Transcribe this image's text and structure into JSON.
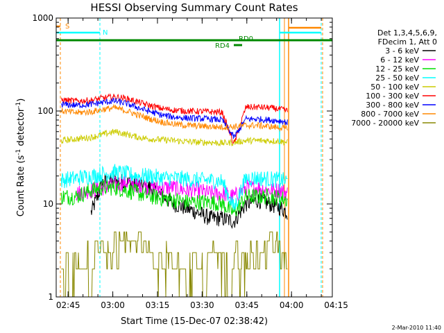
{
  "chart_data": {
    "type": "line",
    "title": "HESSI Observing Summary Count Rates",
    "xlabel": "Start Time (15-Dec-07 02:38:42)",
    "ylabel_main": "Count Rate (s",
    "ylabel_sup1": "-1",
    "ylabel_mid": " detector",
    "ylabel_sup2": "-1",
    "ylabel_end": ")",
    "yscale": "log",
    "ylim": [
      1,
      1000
    ],
    "xlim_minutes": [
      2.3,
      95.0
    ],
    "xticks": [
      {
        "label": "02:45",
        "minute": 6.3
      },
      {
        "label": "03:00",
        "minute": 21.3
      },
      {
        "label": "03:15",
        "minute": 36.3
      },
      {
        "label": "03:30",
        "minute": 51.3
      },
      {
        "label": "03:45",
        "minute": 66.3
      },
      {
        "label": "04:00",
        "minute": 81.3
      },
      {
        "label": "04:15",
        "minute": 96.3
      }
    ],
    "yticks": [
      {
        "label": "1",
        "value": 1
      },
      {
        "label": "10",
        "value": 10
      },
      {
        "label": "100",
        "value": 100
      },
      {
        "label": "1000",
        "value": 1000
      }
    ],
    "legend_header": [
      "Det 1,3,4,5,6,9,",
      "FDecim 1, Att 0"
    ],
    "legend_position": "right",
    "series": [
      {
        "name": "3 - 6 keV",
        "color": "#000000",
        "x": [
          14,
          18,
          22,
          26,
          30,
          34,
          38,
          42,
          46,
          50,
          54,
          58,
          62,
          66,
          70,
          74,
          78,
          80
        ],
        "y": [
          8,
          17,
          18,
          17,
          16,
          15,
          12,
          10,
          9,
          8,
          7,
          7,
          6.5,
          10,
          11,
          10,
          9,
          8
        ]
      },
      {
        "name": "6 - 12 keV",
        "color": "#ff00ff",
        "x": [
          9,
          14,
          18,
          22,
          26,
          30,
          34,
          38,
          42,
          46,
          50,
          54,
          58,
          62,
          66,
          70,
          74,
          78,
          80
        ],
        "y": [
          13,
          14,
          15,
          16,
          17,
          16,
          15,
          15,
          15,
          14,
          14,
          13,
          13,
          12,
          15,
          15,
          14,
          14,
          13
        ]
      },
      {
        "name": "12 - 25 keV",
        "color": "#00dd00",
        "x": [
          4,
          9,
          14,
          18,
          22,
          26,
          30,
          34,
          38,
          42,
          46,
          50,
          54,
          58,
          62,
          66,
          70,
          74,
          78,
          80
        ],
        "y": [
          12,
          12,
          14,
          15,
          15,
          14,
          13,
          12,
          11.5,
          11,
          10.5,
          10.5,
          10.5,
          10,
          8,
          12,
          12,
          12,
          11.5,
          11
        ]
      },
      {
        "name": "25 - 50 keV",
        "color": "#00ffff",
        "x": [
          4,
          9,
          14,
          18,
          22,
          26,
          30,
          34,
          38,
          42,
          46,
          50,
          54,
          58,
          62,
          66,
          70,
          74,
          78,
          80
        ],
        "y": [
          18,
          19,
          20,
          21,
          22,
          21,
          20,
          20,
          19,
          19,
          18.5,
          18,
          18,
          17.5,
          9,
          19,
          19,
          18.5,
          18,
          17.5
        ]
      },
      {
        "name": "50 - 100 keV",
        "color": "#cccc00",
        "x": [
          4,
          9,
          14,
          18,
          22,
          26,
          30,
          34,
          38,
          42,
          46,
          50,
          54,
          58,
          62,
          66,
          70,
          74,
          78,
          80
        ],
        "y": [
          48,
          50,
          52,
          56,
          60,
          56,
          52,
          50,
          49,
          48,
          47,
          46,
          46,
          45,
          46,
          48,
          48,
          48,
          47,
          46
        ]
      },
      {
        "name": "100 - 300 keV",
        "color": "#ff0000",
        "x": [
          4,
          9,
          14,
          18,
          22,
          26,
          30,
          34,
          38,
          42,
          46,
          50,
          54,
          58,
          62,
          66,
          70,
          74,
          78,
          80
        ],
        "y": [
          132,
          128,
          130,
          138,
          142,
          136,
          124,
          114,
          106,
          102,
          100,
          99,
          98,
          97,
          44,
          110,
          110,
          108,
          104,
          100
        ]
      },
      {
        "name": "300 - 800 keV",
        "color": "#0000ff",
        "x": [
          4,
          9,
          14,
          18,
          22,
          26,
          30,
          34,
          38,
          42,
          46,
          50,
          54,
          58,
          62,
          66,
          70,
          74,
          78,
          80
        ],
        "y": [
          118,
          115,
          118,
          124,
          128,
          120,
          108,
          98,
          90,
          86,
          84,
          83,
          82,
          80,
          52,
          82,
          82,
          80,
          78,
          75
        ]
      },
      {
        "name": "800 - 7000 keV",
        "color": "#ff8800",
        "x": [
          4,
          9,
          14,
          18,
          22,
          26,
          30,
          34,
          38,
          42,
          46,
          50,
          54,
          58,
          62,
          66,
          70,
          74,
          78,
          80
        ],
        "y": [
          100,
          96,
          98,
          104,
          108,
          100,
          90,
          82,
          76,
          72,
          70,
          69,
          68,
          67,
          68,
          70,
          70,
          68,
          66,
          64
        ]
      },
      {
        "name": "7000 - 20000 keV",
        "color": "#888800",
        "x": [
          4,
          9,
          14,
          18,
          22,
          26,
          30,
          34,
          38,
          42,
          46,
          50,
          54,
          58,
          62,
          66,
          70,
          74,
          78,
          80
        ],
        "y": [
          2,
          2,
          2.5,
          3,
          3.5,
          4,
          3.5,
          3,
          2.5,
          2,
          2,
          2.5,
          3,
          2.5,
          2,
          2.5,
          3,
          3.5,
          3,
          2.5
        ]
      }
    ],
    "annotations": [
      {
        "text": "S",
        "color": "#ff8800"
      },
      {
        "text": "N",
        "color": "#00ffff"
      },
      {
        "text": "RD0",
        "color": "#008800"
      },
      {
        "text": "RD4",
        "color": "#008800"
      }
    ],
    "footer_date": "2-Mar-2010 11:40"
  }
}
